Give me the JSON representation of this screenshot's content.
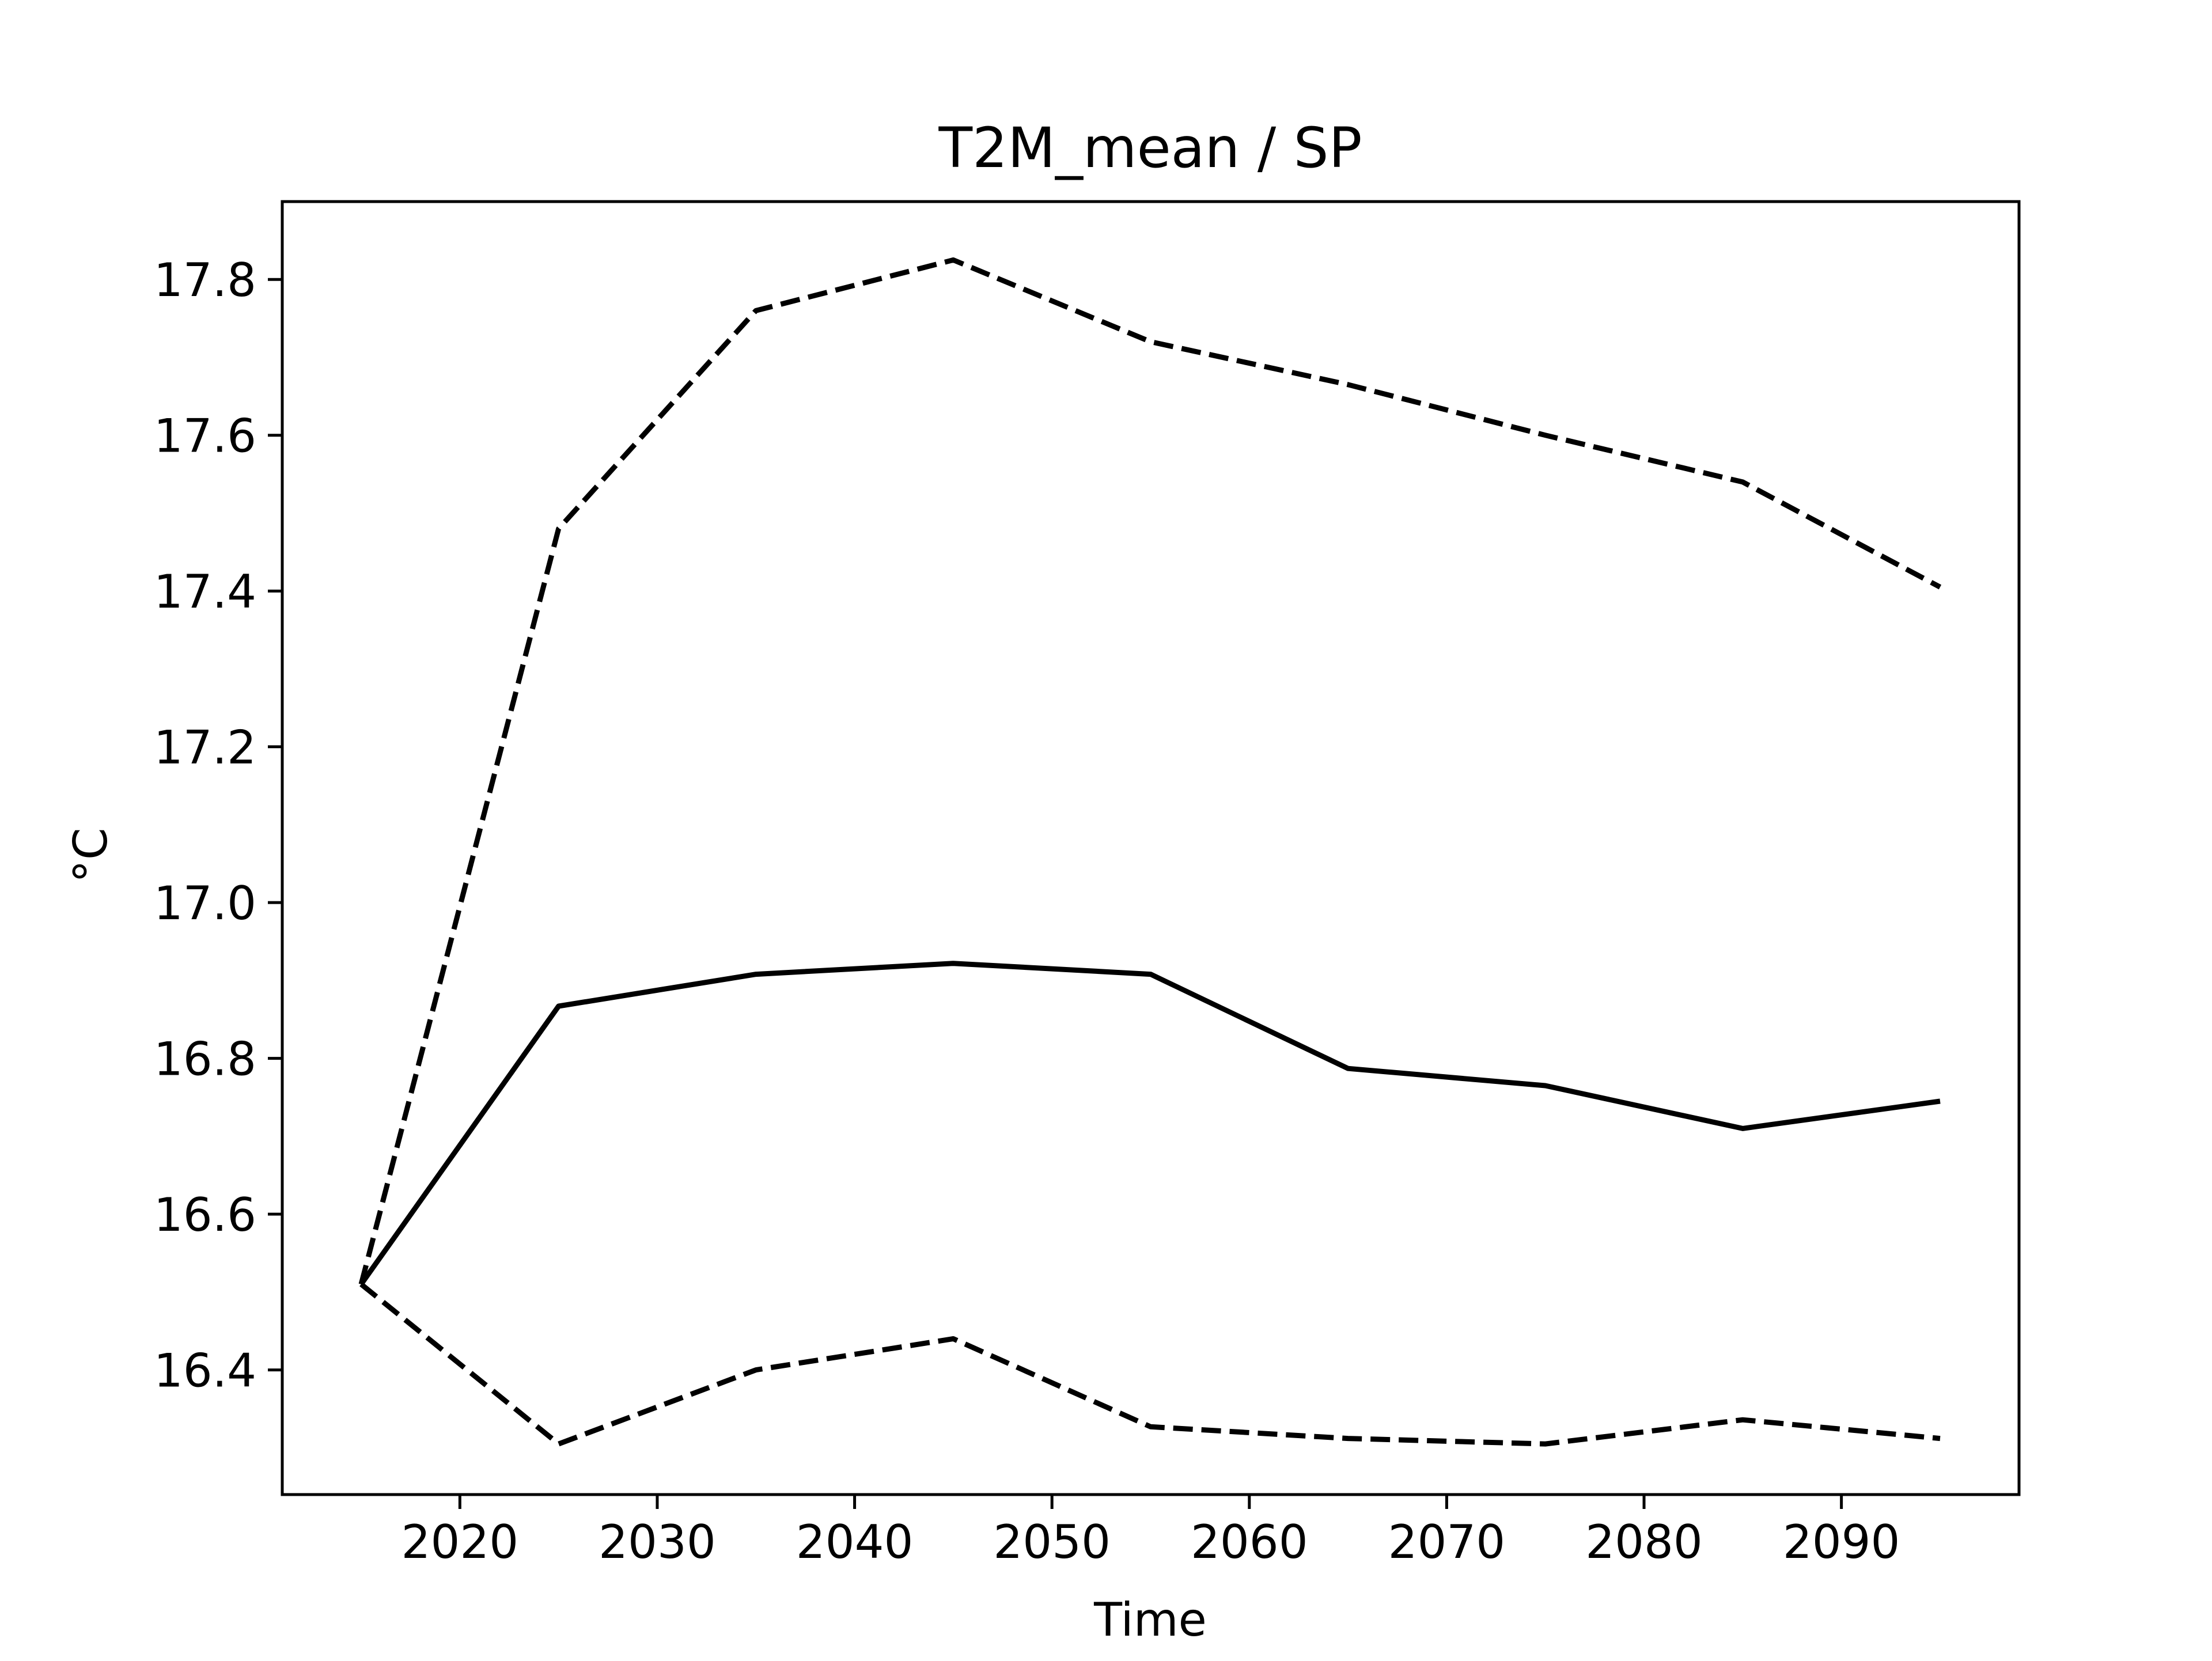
{
  "chart_data": {
    "type": "line",
    "title": "T2M_mean / SP",
    "xlabel": "Time",
    "ylabel": "°C",
    "x": [
      2015,
      2025,
      2035,
      2045,
      2055,
      2065,
      2075,
      2085,
      2095
    ],
    "xlim": [
      2011,
      2099
    ],
    "ylim": [
      16.24,
      17.9
    ],
    "xticks": [
      2020,
      2030,
      2040,
      2050,
      2060,
      2070,
      2080,
      2090
    ],
    "yticks": [
      16.4,
      16.6,
      16.8,
      17.0,
      17.2,
      17.4,
      17.6,
      17.8
    ],
    "xtick_labels": [
      "2020",
      "2030",
      "2040",
      "2050",
      "2060",
      "2070",
      "2080",
      "2090"
    ],
    "ytick_labels": [
      "16.4",
      "16.6",
      "16.8",
      "17.0",
      "17.2",
      "17.4",
      "17.6",
      "17.8"
    ],
    "grid": false,
    "legend": false,
    "series": [
      {
        "style": "dashed",
        "color": "#000000",
        "values": [
          16.51,
          17.48,
          17.76,
          17.825,
          17.72,
          17.665,
          17.6,
          17.54,
          17.405
        ]
      },
      {
        "style": "solid",
        "color": "#000000",
        "values": [
          16.51,
          16.867,
          16.908,
          16.922,
          16.908,
          16.787,
          16.765,
          16.71,
          16.745
        ]
      },
      {
        "style": "dashed",
        "color": "#000000",
        "values": [
          16.51,
          16.305,
          16.4,
          16.44,
          16.327,
          16.312,
          16.305,
          16.336,
          16.312
        ]
      }
    ]
  }
}
